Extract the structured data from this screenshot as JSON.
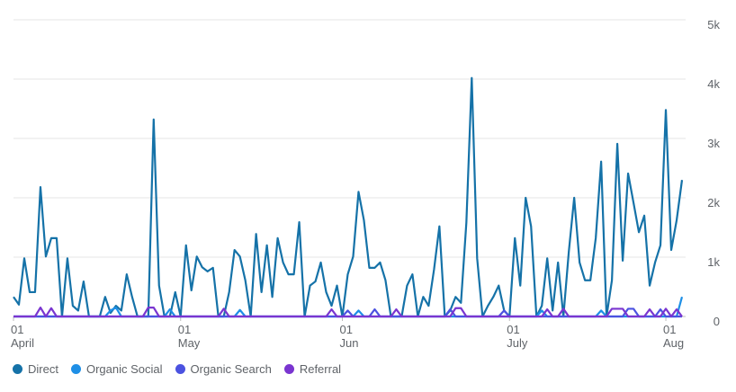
{
  "chart_data": {
    "type": "line",
    "categories": [
      "01 April",
      null,
      null,
      null,
      null,
      null,
      null,
      null,
      null,
      null,
      null,
      null,
      null,
      null,
      null,
      null,
      null,
      null,
      null,
      null,
      null,
      null,
      null,
      null,
      null,
      null,
      null,
      null,
      null,
      null,
      null,
      "01 May",
      null,
      null,
      null,
      null,
      null,
      null,
      null,
      null,
      null,
      null,
      null,
      null,
      null,
      null,
      null,
      null,
      null,
      null,
      null,
      null,
      null,
      null,
      null,
      null,
      null,
      null,
      null,
      null,
      null,
      "01 Jun",
      null,
      null,
      null,
      null,
      null,
      null,
      null,
      null,
      null,
      null,
      null,
      null,
      null,
      null,
      null,
      null,
      null,
      null,
      null,
      null,
      null,
      null,
      null,
      null,
      null,
      null,
      null,
      null,
      null,
      null,
      "01 July",
      null,
      null,
      null,
      null,
      null,
      null,
      null,
      null,
      null,
      null,
      null,
      null,
      null,
      null,
      null,
      null,
      null,
      null,
      null,
      null,
      null,
      null,
      null,
      null,
      null,
      null,
      null,
      null,
      "01 Aug",
      null,
      null,
      null
    ],
    "series": [
      {
        "name": "Direct",
        "color": "#1572a8",
        "values": [
          330,
          200,
          980,
          410,
          410,
          2180,
          1010,
          1320,
          1320,
          0,
          980,
          180,
          100,
          590,
          0,
          0,
          0,
          330,
          60,
          180,
          100,
          710,
          330,
          0,
          0,
          0,
          3320,
          520,
          0,
          0,
          410,
          0,
          1200,
          440,
          1010,
          830,
          760,
          820,
          0,
          0,
          410,
          1120,
          1010,
          610,
          0,
          1390,
          410,
          1200,
          330,
          1320,
          910,
          710,
          710,
          1590,
          0,
          520,
          590,
          910,
          410,
          180,
          520,
          0,
          710,
          1010,
          2100,
          1620,
          820,
          820,
          910,
          610,
          0,
          0,
          0,
          520,
          710,
          0,
          330,
          180,
          790,
          1520,
          0,
          100,
          330,
          230,
          1580,
          4020,
          980,
          0,
          180,
          330,
          520,
          100,
          0,
          1320,
          520,
          2000,
          1520,
          0,
          180,
          980,
          100,
          910,
          0,
          1090,
          2000,
          910,
          610,
          610,
          1320,
          2610,
          0,
          610,
          2910,
          940,
          2410,
          1920,
          1420,
          1700,
          520,
          910,
          1200,
          3480,
          1120,
          1620,
          2300
        ]
      },
      {
        "name": "Organic Social",
        "color": "#1e8fe6",
        "values": [
          0,
          0,
          0,
          0,
          0,
          0,
          0,
          0,
          0,
          0,
          0,
          0,
          0,
          0,
          0,
          0,
          0,
          0,
          100,
          150,
          0,
          0,
          0,
          0,
          0,
          0,
          0,
          0,
          0,
          120,
          0,
          0,
          0,
          0,
          0,
          0,
          0,
          0,
          0,
          0,
          0,
          0,
          110,
          0,
          0,
          0,
          0,
          0,
          0,
          0,
          0,
          0,
          0,
          0,
          0,
          0,
          0,
          0,
          0,
          0,
          0,
          0,
          0,
          0,
          100,
          0,
          0,
          0,
          0,
          0,
          0,
          0,
          0,
          0,
          0,
          0,
          0,
          0,
          0,
          0,
          0,
          0,
          0,
          0,
          0,
          0,
          0,
          0,
          0,
          0,
          0,
          0,
          0,
          0,
          0,
          0,
          0,
          0,
          100,
          0,
          0,
          0,
          0,
          0,
          0,
          0,
          0,
          0,
          0,
          100,
          0,
          0,
          0,
          0,
          0,
          0,
          0,
          0,
          0,
          0,
          0,
          0,
          0,
          0,
          330
        ]
      },
      {
        "name": "Organic Search",
        "color": "#4b52e0",
        "values": [
          0,
          0,
          0,
          0,
          0,
          0,
          0,
          0,
          0,
          0,
          0,
          0,
          0,
          0,
          0,
          0,
          0,
          0,
          0,
          0,
          0,
          0,
          0,
          0,
          0,
          0,
          0,
          0,
          0,
          0,
          0,
          0,
          0,
          0,
          0,
          0,
          0,
          0,
          0,
          0,
          0,
          0,
          0,
          0,
          0,
          0,
          0,
          0,
          0,
          0,
          0,
          0,
          0,
          0,
          0,
          0,
          0,
          0,
          0,
          0,
          0,
          0,
          100,
          0,
          0,
          0,
          0,
          120,
          0,
          0,
          0,
          0,
          0,
          0,
          0,
          0,
          0,
          0,
          0,
          0,
          0,
          120,
          0,
          0,
          0,
          0,
          0,
          0,
          0,
          0,
          0,
          100,
          0,
          0,
          0,
          0,
          0,
          0,
          0,
          0,
          0,
          0,
          0,
          0,
          0,
          0,
          0,
          0,
          0,
          0,
          0,
          0,
          0,
          0,
          130,
          130,
          0,
          0,
          0,
          0,
          120,
          0,
          0,
          0,
          0
        ]
      },
      {
        "name": "Referral",
        "color": "#7a35d0",
        "values": [
          0,
          0,
          0,
          0,
          0,
          150,
          0,
          140,
          0,
          0,
          0,
          0,
          0,
          0,
          0,
          0,
          0,
          0,
          0,
          0,
          0,
          0,
          0,
          0,
          0,
          150,
          150,
          0,
          0,
          0,
          0,
          0,
          0,
          0,
          0,
          0,
          0,
          0,
          0,
          130,
          0,
          0,
          0,
          0,
          0,
          0,
          0,
          0,
          0,
          0,
          0,
          0,
          0,
          0,
          0,
          0,
          0,
          0,
          0,
          120,
          0,
          0,
          0,
          0,
          0,
          0,
          0,
          0,
          0,
          0,
          0,
          120,
          0,
          0,
          0,
          0,
          0,
          0,
          0,
          0,
          0,
          0,
          140,
          140,
          0,
          0,
          0,
          0,
          0,
          0,
          0,
          0,
          0,
          0,
          0,
          0,
          0,
          0,
          0,
          120,
          0,
          0,
          130,
          0,
          0,
          0,
          0,
          0,
          0,
          0,
          0,
          130,
          130,
          130,
          0,
          0,
          0,
          0,
          120,
          0,
          0,
          130,
          0,
          120,
          0
        ]
      }
    ],
    "ylim": [
      0,
      5000
    ],
    "yticks": [
      0,
      {
        "value": 1000,
        "label": "1k"
      },
      {
        "value": 2000,
        "label": "2k"
      },
      {
        "value": 3000,
        "label": "3k"
      },
      {
        "value": 4000,
        "label": "4k"
      },
      {
        "value": 5000,
        "label": "5k"
      }
    ],
    "grid": true,
    "legend": "bottom"
  }
}
